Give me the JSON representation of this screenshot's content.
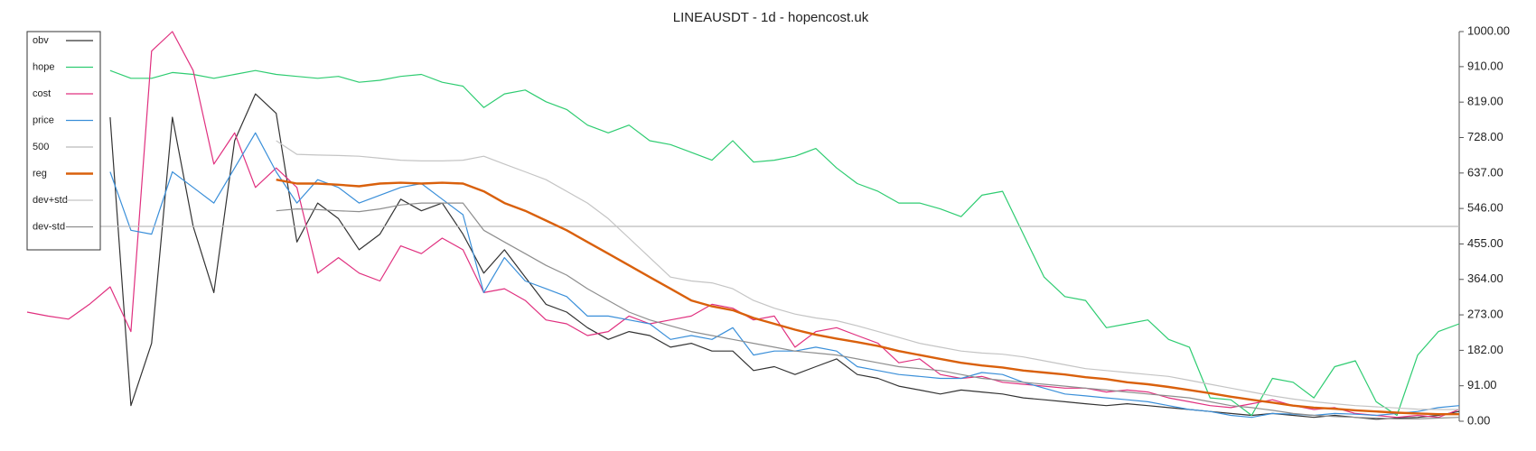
{
  "chart_data": {
    "type": "line",
    "title": "LINEAUSDT - 1d - hopencost.uk",
    "ylim": [
      0,
      1000
    ],
    "yticks": [
      {
        "value": 0,
        "label": "0.00"
      },
      {
        "value": 91,
        "label": "91.00"
      },
      {
        "value": 182,
        "label": "182.00"
      },
      {
        "value": 273,
        "label": "273.00"
      },
      {
        "value": 364,
        "label": "364.00"
      },
      {
        "value": 455,
        "label": "455.00"
      },
      {
        "value": 546,
        "label": "546.00"
      },
      {
        "value": 637,
        "label": "637.00"
      },
      {
        "value": 728,
        "label": "728.00"
      },
      {
        "value": 819,
        "label": "819.00"
      },
      {
        "value": 910,
        "label": "910.00"
      },
      {
        "value": 1000,
        "label": "1000.00"
      }
    ],
    "legend": "upper left",
    "series": [
      {
        "name": "obv",
        "color": "#333333",
        "width": 1.2,
        "values": [
          null,
          null,
          null,
          null,
          780,
          40,
          200,
          780,
          500,
          330,
          720,
          840,
          790,
          460,
          560,
          520,
          440,
          480,
          570,
          540,
          560,
          480,
          380,
          440,
          370,
          300,
          280,
          240,
          210,
          230,
          220,
          190,
          200,
          180,
          180,
          130,
          140,
          120,
          140,
          160,
          120,
          110,
          90,
          80,
          70,
          80,
          75,
          70,
          60,
          55,
          50,
          45,
          40,
          45,
          40,
          35,
          30,
          25,
          20,
          15,
          20,
          15,
          10,
          15,
          10,
          5,
          8,
          10,
          15,
          25
        ]
      },
      {
        "name": "hope",
        "color": "#2ecc71",
        "width": 1.2,
        "values": [
          null,
          null,
          null,
          null,
          900,
          880,
          880,
          895,
          890,
          880,
          890,
          900,
          890,
          885,
          880,
          885,
          870,
          875,
          885,
          890,
          870,
          860,
          805,
          840,
          850,
          820,
          800,
          760,
          740,
          760,
          720,
          710,
          690,
          670,
          720,
          665,
          670,
          680,
          700,
          650,
          610,
          590,
          560,
          560,
          545,
          525,
          580,
          590,
          480,
          370,
          320,
          310,
          240,
          250,
          260,
          210,
          190,
          60,
          55,
          15,
          110,
          100,
          60,
          140,
          155,
          50,
          15,
          170,
          230,
          250
        ]
      },
      {
        "name": "cost",
        "color": "#e0307f",
        "width": 1.2,
        "values": [
          280,
          270,
          262,
          300,
          345,
          230,
          950,
          1000,
          900,
          660,
          740,
          600,
          650,
          600,
          380,
          420,
          380,
          360,
          450,
          430,
          470,
          440,
          330,
          340,
          310,
          260,
          250,
          220,
          230,
          270,
          250,
          260,
          270,
          300,
          290,
          260,
          270,
          190,
          230,
          240,
          220,
          200,
          150,
          160,
          120,
          110,
          115,
          100,
          95,
          90,
          85,
          85,
          75,
          80,
          75,
          60,
          50,
          40,
          35,
          45,
          55,
          40,
          30,
          35,
          20,
          15,
          10,
          15,
          10,
          30
        ]
      },
      {
        "name": "price",
        "color": "#3a8fd9",
        "width": 1.2,
        "values": [
          null,
          null,
          null,
          null,
          640,
          490,
          480,
          640,
          600,
          560,
          650,
          740,
          640,
          560,
          620,
          600,
          560,
          580,
          600,
          610,
          570,
          530,
          330,
          420,
          360,
          340,
          320,
          270,
          270,
          260,
          250,
          210,
          220,
          210,
          240,
          170,
          180,
          180,
          190,
          180,
          140,
          130,
          120,
          115,
          110,
          110,
          125,
          120,
          100,
          85,
          70,
          65,
          60,
          55,
          50,
          40,
          30,
          25,
          15,
          10,
          20,
          18,
          15,
          20,
          18,
          15,
          20,
          25,
          35,
          40
        ]
      },
      {
        "name": "500",
        "color": "#bbbbbb",
        "width": 1.2,
        "values": [
          500,
          500,
          500,
          500,
          500,
          500,
          500,
          500,
          500,
          500,
          500,
          500,
          500,
          500,
          500,
          500,
          500,
          500,
          500,
          500,
          500,
          500,
          500,
          500,
          500,
          500,
          500,
          500,
          500,
          500,
          500,
          500,
          500,
          500,
          500,
          500,
          500,
          500,
          500,
          500,
          500,
          500,
          500,
          500,
          500,
          500,
          500,
          500,
          500,
          500,
          500,
          500,
          500,
          500,
          500,
          500,
          500,
          500,
          500,
          500,
          500,
          500,
          500,
          500,
          500,
          500,
          500,
          500,
          500,
          500
        ]
      },
      {
        "name": "reg",
        "color": "#d9600c",
        "width": 2.4,
        "values": [
          null,
          null,
          null,
          null,
          null,
          null,
          null,
          null,
          null,
          null,
          null,
          null,
          620,
          610,
          610,
          607,
          603,
          610,
          612,
          610,
          612,
          610,
          590,
          560,
          540,
          515,
          490,
          460,
          430,
          400,
          370,
          340,
          310,
          295,
          285,
          265,
          250,
          235,
          222,
          212,
          203,
          193,
          180,
          170,
          160,
          150,
          143,
          138,
          130,
          125,
          120,
          113,
          108,
          100,
          95,
          88,
          80,
          72,
          63,
          55,
          48,
          40,
          35,
          32,
          28,
          25,
          22,
          20,
          18,
          18
        ]
      },
      {
        "name": "dev+std",
        "color": "#c4c4c4",
        "width": 1.2,
        "values": [
          null,
          null,
          null,
          null,
          null,
          null,
          null,
          null,
          null,
          null,
          null,
          null,
          720,
          685,
          683,
          682,
          680,
          675,
          670,
          668,
          668,
          670,
          680,
          660,
          640,
          620,
          590,
          560,
          520,
          470,
          420,
          370,
          360,
          355,
          340,
          310,
          290,
          275,
          265,
          258,
          245,
          230,
          215,
          200,
          190,
          180,
          175,
          172,
          165,
          155,
          145,
          135,
          130,
          125,
          120,
          115,
          105,
          95,
          85,
          75,
          65,
          57,
          50,
          45,
          40,
          37,
          34,
          31,
          30,
          30
        ]
      },
      {
        "name": "dev-std",
        "color": "#8e8e8e",
        "width": 1.2,
        "values": [
          null,
          null,
          null,
          null,
          null,
          null,
          null,
          null,
          null,
          null,
          null,
          null,
          540,
          545,
          543,
          540,
          538,
          545,
          555,
          560,
          560,
          560,
          490,
          460,
          430,
          400,
          375,
          340,
          310,
          280,
          260,
          245,
          230,
          220,
          210,
          200,
          190,
          180,
          175,
          170,
          160,
          150,
          140,
          135,
          130,
          120,
          110,
          105,
          100,
          95,
          90,
          85,
          80,
          75,
          70,
          65,
          60,
          50,
          40,
          35,
          28,
          20,
          15,
          12,
          10,
          8,
          6,
          6,
          8,
          10
        ]
      }
    ]
  }
}
